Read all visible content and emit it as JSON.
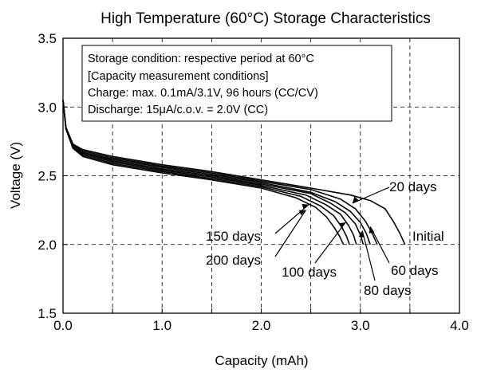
{
  "chart_data": {
    "type": "line",
    "title": "High Temperature (60°C) Storage Characteristics",
    "xlabel": "Capacity (mAh)",
    "ylabel": "Voltage (V)",
    "xlim": [
      0,
      4
    ],
    "ylim": [
      1.5,
      3.5
    ],
    "x_ticks": [
      0,
      0.5,
      1,
      1.5,
      2,
      2.5,
      3,
      3.5,
      4
    ],
    "x_tick_labels": [
      "0.0",
      "",
      "1.0",
      "",
      "2.0",
      "",
      "3.0",
      "",
      "4.0"
    ],
    "y_ticks": [
      1.5,
      2.0,
      2.5,
      3.0,
      3.5
    ],
    "y_tick_labels": [
      "1.5",
      "2.0",
      "2.5",
      "3.0",
      "3.5"
    ],
    "grid": true,
    "grid_style": "dashed",
    "line_color": "#000000",
    "annotation_box": [
      "Storage condition: respective period at 60°C",
      "[Capacity measurement conditions]",
      "Charge: max. 0.1mA/3.1V, 96 hours (CC/CV)",
      "Discharge: 15μA/c.o.v. = 2.0V (CC)"
    ],
    "series": [
      {
        "name": "Initial",
        "label_at": [
          3.45,
          2.06
        ],
        "text_at": [
          3.5,
          2.06
        ],
        "x": [
          0,
          0.03,
          0.1,
          0.2,
          0.5,
          1,
          1.5,
          2,
          2.5,
          2.9,
          3.1,
          3.25,
          3.33,
          3.4,
          3.45
        ],
        "y": [
          3.05,
          2.85,
          2.73,
          2.69,
          2.64,
          2.58,
          2.53,
          2.47,
          2.41,
          2.36,
          2.32,
          2.26,
          2.17,
          2.08,
          2.0
        ]
      },
      {
        "name": "20 days",
        "label_at": [
          2.92,
          2.3
        ],
        "text_at": [
          3.05,
          2.41
        ],
        "x": [
          0,
          0.03,
          0.1,
          0.2,
          0.5,
          1,
          1.5,
          2,
          2.5,
          2.8,
          2.95,
          3.05,
          3.12,
          3.17
        ],
        "y": [
          3.05,
          2.85,
          2.73,
          2.68,
          2.63,
          2.57,
          2.52,
          2.46,
          2.4,
          2.33,
          2.26,
          2.17,
          2.08,
          2.0
        ]
      },
      {
        "name": "60 days",
        "label_at": [
          3.1,
          2.13
        ],
        "text_at": [
          3.2,
          1.82
        ],
        "x": [
          0,
          0.03,
          0.1,
          0.2,
          0.5,
          1,
          1.5,
          2,
          2.5,
          2.75,
          2.9,
          3.0,
          3.06,
          3.1
        ],
        "y": [
          3.05,
          2.85,
          2.72,
          2.67,
          2.62,
          2.56,
          2.51,
          2.45,
          2.38,
          2.31,
          2.24,
          2.16,
          2.08,
          2.0
        ]
      },
      {
        "name": "80 days",
        "label_at": [
          3.02,
          2.1
        ],
        "text_at": [
          2.95,
          1.72
        ],
        "x": [
          0,
          0.03,
          0.1,
          0.2,
          0.5,
          1,
          1.5,
          2,
          2.5,
          2.7,
          2.85,
          2.95,
          3.0,
          3.03
        ],
        "y": [
          3.05,
          2.84,
          2.72,
          2.67,
          2.61,
          2.55,
          2.5,
          2.44,
          2.37,
          2.3,
          2.23,
          2.15,
          2.07,
          2.0
        ]
      },
      {
        "name": "100 days",
        "label_at": [
          2.85,
          2.16
        ],
        "text_at": [
          2.1,
          1.83
        ],
        "x": [
          0,
          0.03,
          0.1,
          0.2,
          0.5,
          1,
          1.5,
          2,
          2.45,
          2.65,
          2.8,
          2.88,
          2.93,
          2.96
        ],
        "y": [
          3.05,
          2.84,
          2.71,
          2.66,
          2.6,
          2.54,
          2.49,
          2.43,
          2.36,
          2.29,
          2.22,
          2.14,
          2.07,
          2.0
        ]
      },
      {
        "name": "150 days",
        "label_at": [
          2.48,
          2.29
        ],
        "text_at": [
          1.4,
          2.03
        ],
        "x": [
          0,
          0.03,
          0.1,
          0.2,
          0.5,
          1,
          1.5,
          2,
          2.4,
          2.6,
          2.73,
          2.81,
          2.86,
          2.89
        ],
        "y": [
          3.05,
          2.84,
          2.71,
          2.65,
          2.59,
          2.53,
          2.48,
          2.42,
          2.35,
          2.28,
          2.21,
          2.13,
          2.06,
          2.0
        ]
      },
      {
        "name": "200 days",
        "label_at": [
          2.45,
          2.25
        ],
        "text_at": [
          1.35,
          1.9
        ],
        "x": [
          0,
          0.03,
          0.1,
          0.2,
          0.5,
          1,
          1.5,
          2,
          2.35,
          2.55,
          2.66,
          2.74,
          2.79,
          2.83
        ],
        "y": [
          3.05,
          2.84,
          2.7,
          2.64,
          2.58,
          2.52,
          2.47,
          2.41,
          2.34,
          2.27,
          2.2,
          2.12,
          2.06,
          2.0
        ]
      }
    ]
  }
}
